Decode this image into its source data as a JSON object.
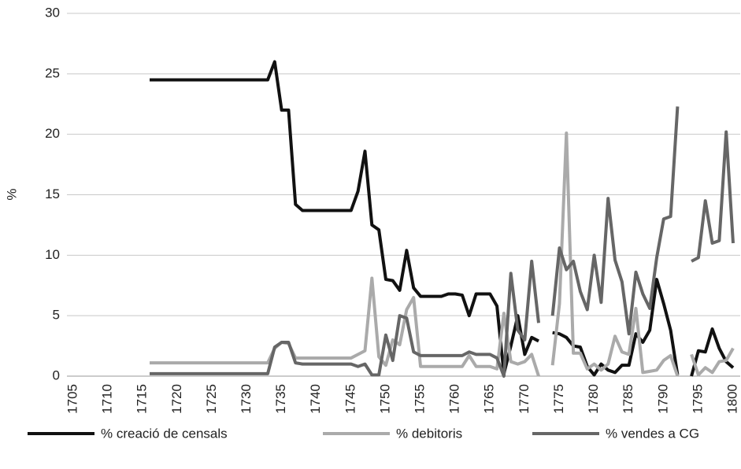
{
  "chart_data": {
    "type": "line",
    "y_label": "%",
    "xlim": [
      1705,
      1800
    ],
    "xticks": [
      1705,
      1710,
      1715,
      1720,
      1725,
      1730,
      1735,
      1740,
      1745,
      1750,
      1755,
      1760,
      1765,
      1770,
      1775,
      1780,
      1785,
      1790,
      1795,
      1800
    ],
    "ylim": [
      0,
      30
    ],
    "yticks": [
      0,
      5,
      10,
      15,
      20,
      25,
      30
    ],
    "grid": true,
    "legend": "bottom",
    "x": [
      1716,
      1717,
      1718,
      1719,
      1720,
      1721,
      1722,
      1723,
      1724,
      1725,
      1726,
      1727,
      1728,
      1729,
      1730,
      1731,
      1732,
      1733,
      1734,
      1735,
      1736,
      1737,
      1738,
      1739,
      1740,
      1741,
      1742,
      1743,
      1744,
      1745,
      1746,
      1747,
      1748,
      1749,
      1750,
      1751,
      1752,
      1753,
      1754,
      1755,
      1756,
      1757,
      1758,
      1759,
      1760,
      1761,
      1762,
      1763,
      1764,
      1765,
      1766,
      1767,
      1768,
      1769,
      1770,
      1771,
      1772,
      1773,
      1774,
      1775,
      1776,
      1777,
      1778,
      1779,
      1780,
      1781,
      1782,
      1783,
      1784,
      1785,
      1786,
      1787,
      1788,
      1789,
      1790,
      1791,
      1792,
      1793,
      1794,
      1795,
      1796,
      1797,
      1798,
      1799,
      1800
    ],
    "series": [
      {
        "name": "% creació de censals",
        "color": "#111111",
        "values": [
          24.5,
          24.5,
          24.5,
          24.5,
          24.5,
          24.5,
          24.5,
          24.5,
          24.5,
          24.5,
          24.5,
          24.5,
          24.5,
          24.5,
          24.5,
          24.5,
          24.5,
          24.5,
          26,
          22,
          22,
          14.2,
          13.7,
          13.7,
          13.7,
          13.7,
          13.7,
          13.7,
          13.7,
          13.7,
          15.3,
          18.6,
          12.5,
          12.1,
          8.0,
          7.9,
          7.1,
          10.4,
          7.3,
          6.6,
          6.6,
          6.6,
          6.6,
          6.8,
          6.8,
          6.7,
          5.0,
          6.8,
          6.8,
          6.8,
          5.8,
          0.2,
          2.5,
          5.0,
          1.8,
          3.2,
          2.9,
          null,
          3.6,
          3.5,
          3.2,
          2.5,
          2.4,
          0.8,
          0.1,
          1.0,
          0.5,
          0.3,
          0.9,
          0.9,
          3.5,
          2.8,
          3.8,
          8.0,
          6.0,
          3.8,
          0.1,
          null,
          0,
          2.1,
          2.0,
          3.9,
          2.3,
          1.2,
          0.7
        ]
      },
      {
        "name": "% debitoris",
        "color": "#aaaaaa",
        "values": [
          1.1,
          1.1,
          1.1,
          1.1,
          1.1,
          1.1,
          1.1,
          1.1,
          1.1,
          1.1,
          1.1,
          1.1,
          1.1,
          1.1,
          1.1,
          1.1,
          1.1,
          1.1,
          2.3,
          2.8,
          2.7,
          1.5,
          1.5,
          1.5,
          1.5,
          1.5,
          1.5,
          1.5,
          1.5,
          1.5,
          1.8,
          2.1,
          8.1,
          1.6,
          0.9,
          3.0,
          2.6,
          5.5,
          6.5,
          0.8,
          0.8,
          0.8,
          0.8,
          0.8,
          0.8,
          0.8,
          1.7,
          0.8,
          0.8,
          0.8,
          0.6,
          5.2,
          1.2,
          1.0,
          1.2,
          1.8,
          0.0,
          null,
          0.9,
          6.0,
          20.1,
          1.9,
          1.9,
          0.6,
          1.0,
          0.5,
          1.0,
          3.3,
          2.0,
          1.8,
          5.6,
          0.3,
          0.4,
          0.5,
          1.3,
          1.7,
          0.0,
          null,
          1.8,
          0.1,
          0.7,
          0.3,
          1.2,
          1.3,
          2.3
        ]
      },
      {
        "name": "% vendes a CG",
        "color": "#666666",
        "values": [
          0.2,
          0.2,
          0.2,
          0.2,
          0.2,
          0.2,
          0.2,
          0.2,
          0.2,
          0.2,
          0.2,
          0.2,
          0.2,
          0.2,
          0.2,
          0.2,
          0.2,
          0.2,
          2.4,
          2.8,
          2.8,
          1.1,
          1.0,
          1.0,
          1.0,
          1.0,
          1.0,
          1.0,
          1.0,
          1.0,
          0.8,
          1.0,
          0.1,
          0.1,
          3.4,
          1.3,
          5.0,
          4.8,
          2.0,
          1.7,
          1.7,
          1.7,
          1.7,
          1.7,
          1.7,
          1.7,
          2.0,
          1.8,
          1.8,
          1.8,
          1.5,
          0.0,
          8.5,
          3.8,
          3.0,
          9.5,
          4.4,
          null,
          5.0,
          10.6,
          8.8,
          9.5,
          7.0,
          5.5,
          10.0,
          6.1,
          14.7,
          9.6,
          7.8,
          3.5,
          8.6,
          6.8,
          5.6,
          9.8,
          13.0,
          13.2,
          22.3,
          null,
          9.5,
          9.8,
          14.5,
          11.0,
          11.2,
          20.2,
          11.0
        ]
      }
    ]
  }
}
